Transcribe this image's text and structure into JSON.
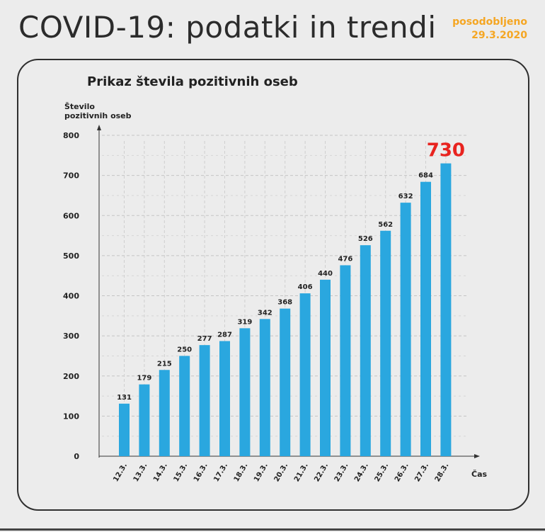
{
  "header": {
    "title": "COVID-19: podatki in trendi",
    "updated_label": "posodobljeno",
    "updated_date": "29.3.2020"
  },
  "colors": {
    "bar": "#2aa7df",
    "highlight": "#e8231f",
    "accent": "#f5a623",
    "text": "#222222"
  },
  "chart_data": {
    "type": "bar",
    "title": "Prikaz števila pozitivnih oseb",
    "ylabel": [
      "Število",
      "pozitivnih oseb"
    ],
    "xlabel": "Čas",
    "ylim": [
      0,
      800
    ],
    "yticks": [
      0,
      100,
      200,
      300,
      400,
      500,
      600,
      700,
      800
    ],
    "grid": true,
    "categories": [
      "12.3.",
      "13.3.",
      "14.3.",
      "15.3.",
      "16.3.",
      "17.3.",
      "18.3.",
      "19.3.",
      "20.3.",
      "21.3.",
      "22.3.",
      "23.3.",
      "24.3.",
      "25.3.",
      "26.3.",
      "27.3.",
      "28.3."
    ],
    "values": [
      131,
      179,
      215,
      250,
      277,
      287,
      319,
      342,
      368,
      406,
      440,
      476,
      526,
      562,
      632,
      684,
      730
    ],
    "highlight_last": true
  }
}
